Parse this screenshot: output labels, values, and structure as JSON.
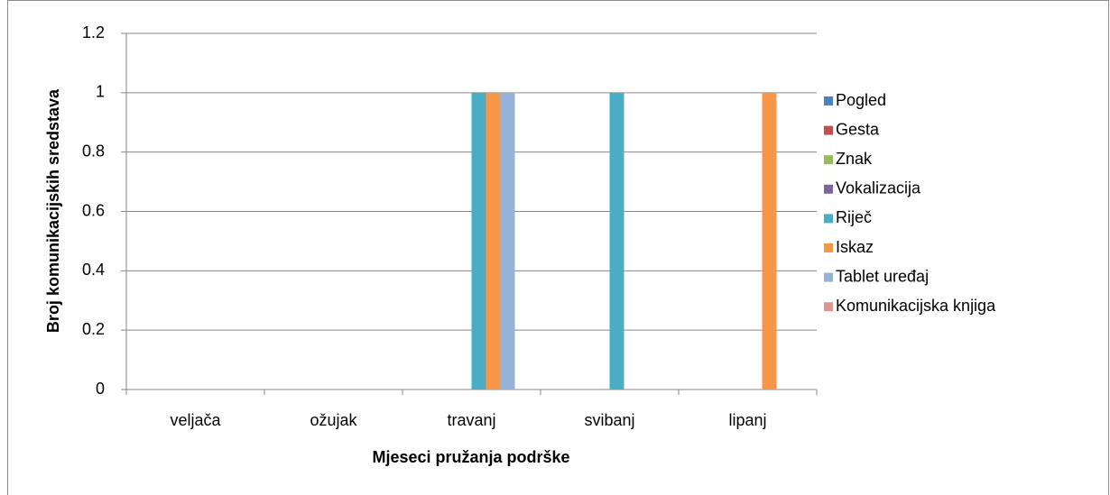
{
  "chart_data": {
    "type": "bar",
    "xlabel": "Mjeseci pružanja podrške",
    "ylabel": "Broj komunikacijskih sredstava",
    "categories": [
      "veljača",
      "ožujak",
      "travanj",
      "svibanj",
      "lipanj"
    ],
    "series": [
      {
        "name": "Pogled",
        "color": "#4f81bd",
        "values": [
          0,
          0,
          0,
          0,
          0
        ]
      },
      {
        "name": "Gesta",
        "color": "#c0504d",
        "values": [
          0,
          0,
          0,
          0,
          0
        ]
      },
      {
        "name": "Znak",
        "color": "#9bbb59",
        "values": [
          0,
          0,
          0,
          0,
          0
        ]
      },
      {
        "name": "Vokalizacija",
        "color": "#8064a2",
        "values": [
          0,
          0,
          0,
          0,
          0
        ]
      },
      {
        "name": "Riječ",
        "color": "#4bacc6",
        "values": [
          0,
          0,
          1,
          1,
          0
        ]
      },
      {
        "name": "Iskaz",
        "color": "#f79646",
        "values": [
          0,
          0,
          1,
          0,
          1
        ]
      },
      {
        "name": "Tablet uređaj",
        "color": "#95b3d7",
        "values": [
          0,
          0,
          1,
          0,
          0
        ]
      },
      {
        "name": "Komunikacijska knjiga",
        "color": "#d99694",
        "values": [
          0,
          0,
          0,
          0,
          0
        ]
      }
    ],
    "ylim": [
      0,
      1.2
    ],
    "yticks": [
      0,
      0.2,
      0.4,
      0.6,
      0.8,
      1,
      1.2
    ],
    "grid": true,
    "legend": "right"
  }
}
